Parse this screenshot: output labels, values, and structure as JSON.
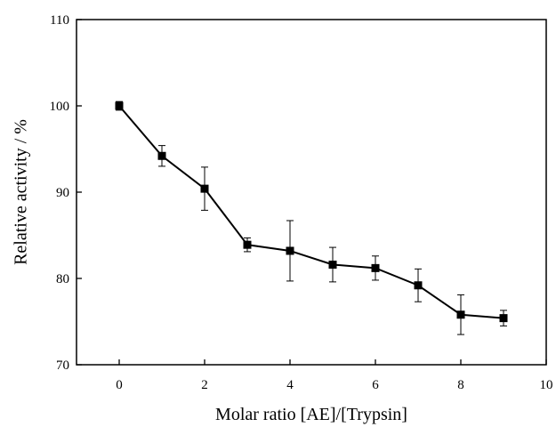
{
  "chart_data": {
    "type": "line",
    "title": "",
    "xlabel": "Molar ratio [AE]/[Trypsin]",
    "ylabel": "Relative activity / %",
    "xlim": [
      -1,
      10
    ],
    "ylim": [
      70,
      110
    ],
    "xticks": [
      0,
      2,
      4,
      6,
      8,
      10
    ],
    "yticks": [
      70,
      80,
      90,
      100,
      110
    ],
    "grid": false,
    "legend": "none",
    "series": [
      {
        "x": [
          0,
          1,
          2,
          3,
          4,
          5,
          6,
          7,
          8,
          9
        ],
        "y": [
          100.0,
          94.2,
          90.4,
          83.9,
          83.2,
          81.6,
          81.2,
          79.2,
          75.8,
          75.4
        ],
        "yerr": [
          0.5,
          1.2,
          2.5,
          0.8,
          3.5,
          2.0,
          1.4,
          1.9,
          2.3,
          0.9
        ],
        "color": "#000000",
        "marker": "square"
      }
    ]
  }
}
